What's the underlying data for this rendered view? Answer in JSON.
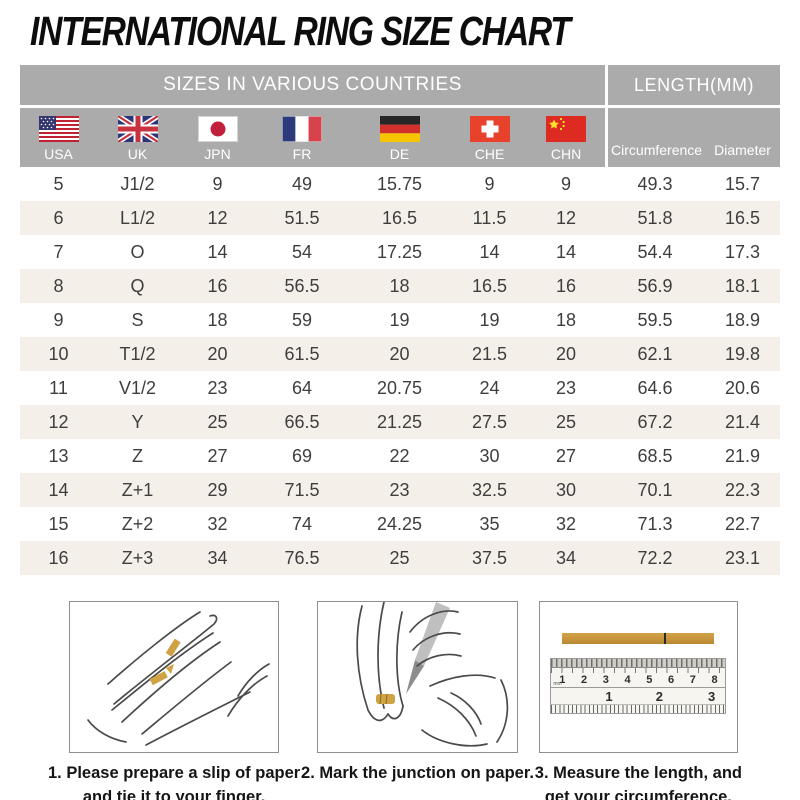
{
  "title": "INTERNATIONAL RING SIZE CHART",
  "table": {
    "header": {
      "countries": "SIZES IN VARIOUS COUNTRIES",
      "length": "LENGTH(MM)"
    },
    "columns": [
      {
        "code": "USA",
        "flag": "usa-flag-icon"
      },
      {
        "code": "UK",
        "flag": "uk-flag-icon"
      },
      {
        "code": "JPN",
        "flag": "japan-flag-icon"
      },
      {
        "code": "FR",
        "flag": "france-flag-icon"
      },
      {
        "code": "DE",
        "flag": "germany-flag-icon"
      },
      {
        "code": "CHE",
        "flag": "switzerland-flag-icon"
      },
      {
        "code": "CHN",
        "flag": "china-flag-icon"
      }
    ],
    "length_subcolumns": [
      "Circumference",
      "Diameter"
    ],
    "rows": [
      [
        "5",
        "J1/2",
        "9",
        "49",
        "15.75",
        "9",
        "9",
        "49.3",
        "15.7"
      ],
      [
        "6",
        "L1/2",
        "12",
        "51.5",
        "16.5",
        "11.5",
        "12",
        "51.8",
        "16.5"
      ],
      [
        "7",
        "O",
        "14",
        "54",
        "17.25",
        "14",
        "14",
        "54.4",
        "17.3"
      ],
      [
        "8",
        "Q",
        "16",
        "56.5",
        "18",
        "16.5",
        "16",
        "56.9",
        "18.1"
      ],
      [
        "9",
        "S",
        "18",
        "59",
        "19",
        "19",
        "18",
        "59.5",
        "18.9"
      ],
      [
        "10",
        "T1/2",
        "20",
        "61.5",
        "20",
        "21.5",
        "20",
        "62.1",
        "19.8"
      ],
      [
        "11",
        "V1/2",
        "23",
        "64",
        "20.75",
        "24",
        "23",
        "64.6",
        "20.6"
      ],
      [
        "12",
        "Y",
        "25",
        "66.5",
        "21.25",
        "27.5",
        "25",
        "67.2",
        "21.4"
      ],
      [
        "13",
        "Z",
        "27",
        "69",
        "22",
        "30",
        "27",
        "68.5",
        "21.9"
      ],
      [
        "14",
        "Z+1",
        "29",
        "71.5",
        "23",
        "32.5",
        "30",
        "70.1",
        "22.3"
      ],
      [
        "15",
        "Z+2",
        "32",
        "74",
        "24.25",
        "35",
        "32",
        "71.3",
        "22.7"
      ],
      [
        "16",
        "Z+3",
        "34",
        "76.5",
        "25",
        "37.5",
        "34",
        "72.2",
        "23.1"
      ]
    ]
  },
  "instructions": [
    {
      "caption_line1": "1. Please prepare a slip of paper",
      "caption_line2": "and tie it to your finger.",
      "illustration": "hand-with-paper-strip"
    },
    {
      "caption_line1": "2. Mark the junction on paper.",
      "caption_line2": "",
      "illustration": "marking-junction"
    },
    {
      "caption_line1": "3. Measure the length, and",
      "caption_line2": "get your circumference.",
      "illustration": "ruler-measurement"
    }
  ],
  "ruler": {
    "unit": "mm",
    "cm_numbers": [
      "1",
      "2",
      "3",
      "4",
      "5",
      "6",
      "7",
      "8"
    ],
    "inch_numbers": [
      "1",
      "2",
      "3"
    ]
  },
  "colors": {
    "header_gray": "#ababab",
    "row_stripe": "#f5efea",
    "gold": "#c6953e",
    "body_text": "#3e3e3e"
  }
}
